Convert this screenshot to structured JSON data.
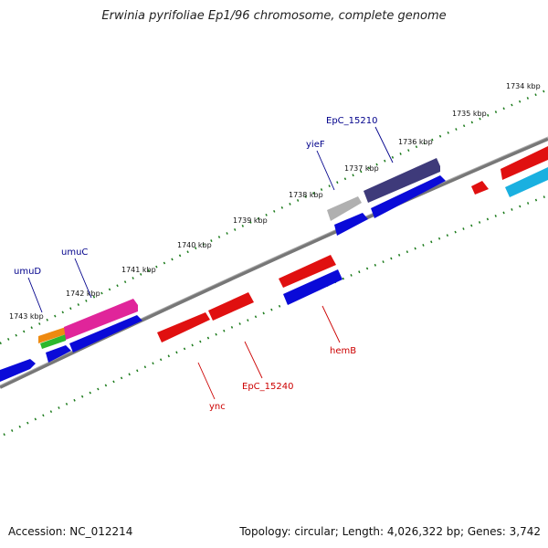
{
  "title": "Erwinia pyrifoliae Ep1/96 chromosome, complete genome",
  "footer": {
    "accession": "Accession: NC_012214",
    "summary": "Topology: circular; Length: 4,026,322 bp; Genes: 3,742"
  },
  "ticks": [
    "1734 kbp",
    "1735 kbp",
    "1736 kbp",
    "1737 kbp",
    "1738 kbp",
    "1739 kbp",
    "1740 kbp",
    "1741 kbp",
    "1742 kbp",
    "1743 kbp"
  ],
  "gene_labels": {
    "umuD": "umuD",
    "umuC": "umuC",
    "yieF": "yieF",
    "EpC_15210": "EpC_15210",
    "ync": "ync",
    "EpC_15240": "EpC_15240",
    "hemB": "hemB"
  },
  "colors": {
    "backbone": "#7f7f7f",
    "tick": "#1a7a1a",
    "label_forward": "#00008b",
    "label_reverse": "#cc0000",
    "blue": "#0a0ad8",
    "red": "#e01010",
    "magenta": "#e0259a",
    "purple": "#3e3a7a",
    "gray": "#b0b0b0",
    "cyan": "#1ab0e0",
    "orange": "#ee8a10",
    "green": "#2cb82c"
  }
}
